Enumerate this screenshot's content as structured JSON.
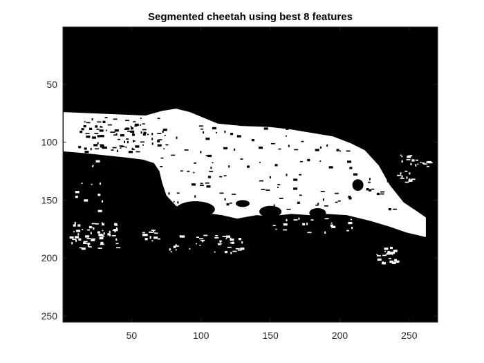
{
  "chart_data": {
    "type": "heatmap",
    "title": "Segmented cheetah using best 8 features",
    "xlabel": "",
    "ylabel": "",
    "xlim": [
      0.5,
      270.5
    ],
    "ylim": [
      0.5,
      255.5
    ],
    "y_direction": "reverse",
    "xticks": [
      50,
      100,
      150,
      200,
      250
    ],
    "yticks": [
      50,
      100,
      150,
      200,
      250
    ],
    "image_size": {
      "rows": 255,
      "cols": 270
    },
    "colormap": "gray (binary: 0 = black background, 1 = white segmented foreground)",
    "background_color": "#000000",
    "foreground_color": "#ffffff",
    "grid": false,
    "legend": "none"
  }
}
